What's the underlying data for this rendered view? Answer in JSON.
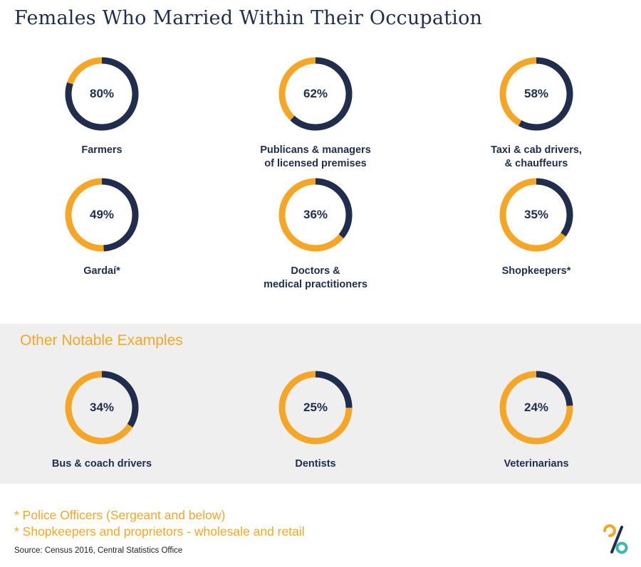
{
  "title": "Females Who Married Within Their Occupation",
  "colors": {
    "navy": "#1f2d4e",
    "orange": "#f5a627",
    "band": "#efefef",
    "teal": "#3fb8b0"
  },
  "chart_data": [
    {
      "type": "donut",
      "group": "main",
      "items": [
        {
          "category": [
            "Farmers"
          ],
          "value": 80,
          "label": "80%"
        },
        {
          "category": [
            "Publicans & managers",
            "of licensed premises"
          ],
          "value": 62,
          "label": "62%"
        },
        {
          "category": [
            "Taxi & cab drivers,",
            "& chauffeurs"
          ],
          "value": 58,
          "label": "58%"
        },
        {
          "category": [
            "Gardaí*"
          ],
          "value": 49,
          "label": "49%"
        },
        {
          "category": [
            "Doctors &",
            "medical practitioners"
          ],
          "value": 36,
          "label": "36%"
        },
        {
          "category": [
            "Shopkeepers*"
          ],
          "value": 35,
          "label": "35%"
        }
      ],
      "unit": "%"
    },
    {
      "type": "donut",
      "group": "other",
      "title": "Other Notable Examples",
      "items": [
        {
          "category": [
            "Bus & coach drivers"
          ],
          "value": 34,
          "label": "34%"
        },
        {
          "category": [
            "Dentists"
          ],
          "value": 25,
          "label": "25%"
        },
        {
          "category": [
            "Veterinarians"
          ],
          "value": 24,
          "label": "24%"
        }
      ],
      "unit": "%"
    }
  ],
  "footnotes": [
    "* Police Officers (Sergeant and below)",
    "* Shopkeepers and proprietors - wholesale and retail"
  ],
  "source": "Source: Census 2016, Central Statistics Office"
}
